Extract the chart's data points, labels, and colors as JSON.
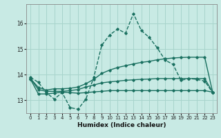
{
  "xlabel": "Humidex (Indice chaleur)",
  "xlim": [
    -0.5,
    23.5
  ],
  "ylim": [
    12.5,
    16.75
  ],
  "bg_color": "#c8eae4",
  "grid_color": "#a8d4cc",
  "line_color": "#1a7060",
  "yticks": [
    13,
    14,
    15,
    16
  ],
  "xticks": [
    0,
    1,
    2,
    3,
    4,
    5,
    6,
    7,
    8,
    9,
    10,
    11,
    12,
    13,
    14,
    15,
    16,
    17,
    18,
    19,
    20,
    21,
    22,
    23
  ],
  "series": [
    {
      "y": [
        13.9,
        13.7,
        13.3,
        13.05,
        13.3,
        12.72,
        12.65,
        13.05,
        13.9,
        15.15,
        15.55,
        15.78,
        15.62,
        16.38,
        15.72,
        15.45,
        15.05,
        14.57,
        14.4,
        13.78,
        13.85,
        13.82,
        13.75,
        13.3
      ],
      "linestyle": "--",
      "lw": 1.0
    },
    {
      "y": [
        13.85,
        13.5,
        13.4,
        13.45,
        13.45,
        13.47,
        13.52,
        13.65,
        13.82,
        14.05,
        14.18,
        14.28,
        14.35,
        14.42,
        14.48,
        14.52,
        14.58,
        14.62,
        14.65,
        14.67,
        14.68,
        14.68,
        14.68,
        13.32
      ],
      "linestyle": "-",
      "lw": 1.0
    },
    {
      "y": [
        13.82,
        13.25,
        13.25,
        13.28,
        13.32,
        13.3,
        13.28,
        13.3,
        13.33,
        13.35,
        13.38,
        13.38,
        13.38,
        13.38,
        13.38,
        13.38,
        13.38,
        13.38,
        13.38,
        13.38,
        13.38,
        13.38,
        13.38,
        13.32
      ],
      "linestyle": "-",
      "lw": 1.0
    },
    {
      "y": [
        13.85,
        13.42,
        13.35,
        13.35,
        13.35,
        13.38,
        13.42,
        13.52,
        13.6,
        13.68,
        13.72,
        13.75,
        13.78,
        13.8,
        13.82,
        13.83,
        13.85,
        13.85,
        13.85,
        13.85,
        13.85,
        13.85,
        13.85,
        13.32
      ],
      "linestyle": "-",
      "lw": 1.0
    }
  ]
}
